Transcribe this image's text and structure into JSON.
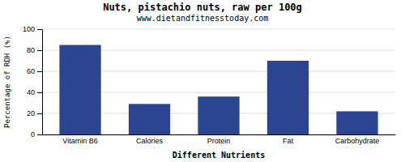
{
  "chart_data": {
    "type": "bar",
    "title": "Nuts, pistachio nuts, raw per 100g",
    "subtitle": "www.dietandfitnesstoday.com",
    "xlabel": "Different Nutrients",
    "ylabel": "Percentage of RDH (%)",
    "categories": [
      "Vitamin B6",
      "Calories",
      "Protein",
      "Fat",
      "Carbohydrate"
    ],
    "values": [
      85,
      29,
      36,
      70,
      22
    ],
    "color": "#2b4590",
    "ylim": [
      0,
      100
    ],
    "yticks": [
      0,
      20,
      40,
      60,
      80,
      100
    ],
    "grid": true
  }
}
